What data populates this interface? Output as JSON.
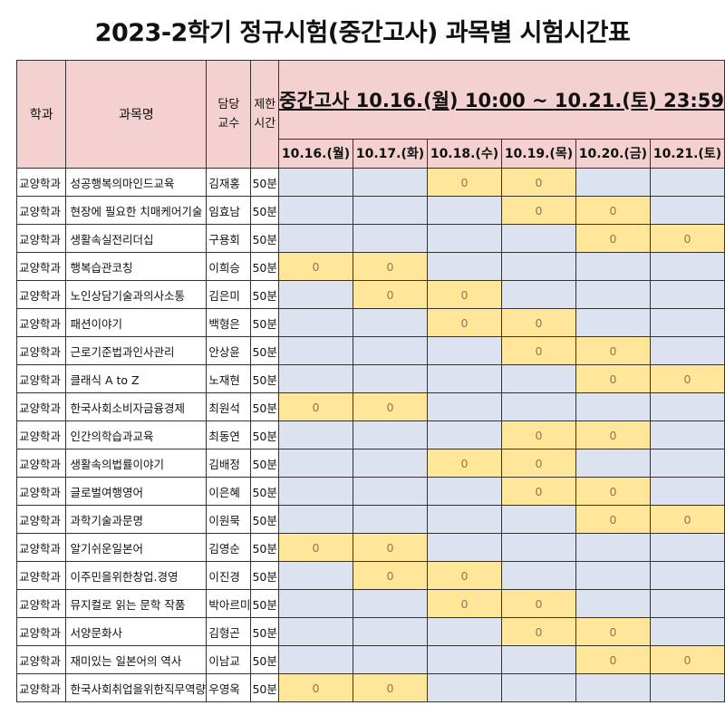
{
  "title": "2023-2학기 정규시험(중간고사) 과목별 시험시간표",
  "header": {
    "dept": "학과",
    "subject": "과목명",
    "prof": "담당\n교수",
    "limit": "제한\n시간",
    "banner": "중간고사  10.16.(월) 10:00 ~ 10.21.(토) 23:59"
  },
  "dates": [
    "10.16.(월)",
    "10.17.(화)",
    "10.18.(수)",
    "10.19.(목)",
    "10.20.(금)",
    "10.21.(토)"
  ],
  "mark": "0",
  "colors": {
    "header_bg": "#f3d1d1",
    "cell_bg": "#dce3ee",
    "highlight_bg": "#ffe699"
  },
  "rows": [
    {
      "dept": "교양학과",
      "subject": "성공행복의마인드교육",
      "prof": "김재홍",
      "limit": "50분",
      "days": [
        0,
        0,
        1,
        1,
        0,
        0
      ]
    },
    {
      "dept": "교양학과",
      "subject": "현장에 필요한 치매케어기술",
      "prof": "임효남",
      "limit": "50분",
      "days": [
        0,
        0,
        0,
        1,
        1,
        0
      ]
    },
    {
      "dept": "교양학과",
      "subject": "생활속실전리더십",
      "prof": "구용회",
      "limit": "50분",
      "days": [
        0,
        0,
        0,
        0,
        1,
        1
      ]
    },
    {
      "dept": "교양학과",
      "subject": "행복습관코칭",
      "prof": "이희승",
      "limit": "50분",
      "days": [
        1,
        1,
        0,
        0,
        0,
        0
      ]
    },
    {
      "dept": "교양학과",
      "subject": "노인상담기술과의사소통",
      "prof": "김은미",
      "limit": "50분",
      "days": [
        0,
        1,
        1,
        0,
        0,
        0
      ]
    },
    {
      "dept": "교양학과",
      "subject": "패션이야기",
      "prof": "백형은",
      "limit": "50분",
      "days": [
        0,
        0,
        1,
        1,
        0,
        0
      ]
    },
    {
      "dept": "교양학과",
      "subject": "근로기준법과인사관리",
      "prof": "안상윤",
      "limit": "50분",
      "days": [
        0,
        0,
        0,
        1,
        1,
        0
      ]
    },
    {
      "dept": "교양학과",
      "subject": "클래식 A to Z",
      "prof": "노재현",
      "limit": "50분",
      "days": [
        0,
        0,
        0,
        0,
        1,
        1
      ]
    },
    {
      "dept": "교양학과",
      "subject": "한국사회소비자금융경제",
      "prof": "최원석",
      "limit": "50분",
      "days": [
        1,
        1,
        0,
        0,
        0,
        0
      ]
    },
    {
      "dept": "교양학과",
      "subject": "인간의학습과교육",
      "prof": "최동연",
      "limit": "50분",
      "days": [
        0,
        0,
        0,
        1,
        1,
        0
      ]
    },
    {
      "dept": "교양학과",
      "subject": "생활속의법률이야기",
      "prof": "김배정",
      "limit": "50분",
      "days": [
        0,
        0,
        1,
        1,
        0,
        0
      ]
    },
    {
      "dept": "교양학과",
      "subject": "글로벌여행영어",
      "prof": "이은혜",
      "limit": "50분",
      "days": [
        0,
        0,
        0,
        1,
        1,
        0
      ]
    },
    {
      "dept": "교양학과",
      "subject": "과학기술과문명",
      "prof": "이원묵",
      "limit": "50분",
      "days": [
        0,
        0,
        0,
        0,
        1,
        1
      ]
    },
    {
      "dept": "교양학과",
      "subject": "알기쉬운일본어",
      "prof": "김영순",
      "limit": "50분",
      "days": [
        1,
        1,
        0,
        0,
        0,
        0
      ]
    },
    {
      "dept": "교양학과",
      "subject": "이주민을위한창업.경영",
      "prof": "이진경",
      "limit": "50분",
      "days": [
        0,
        1,
        1,
        0,
        0,
        0
      ]
    },
    {
      "dept": "교양학과",
      "subject": "뮤지컬로 읽는 문학 작품",
      "prof": "박아르미",
      "limit": "50분",
      "days": [
        0,
        0,
        1,
        1,
        0,
        0
      ]
    },
    {
      "dept": "교양학과",
      "subject": "서양문화사",
      "prof": "김형곤",
      "limit": "50분",
      "days": [
        0,
        0,
        0,
        1,
        1,
        0
      ]
    },
    {
      "dept": "교양학과",
      "subject": "재미있는 일본어의 역사",
      "prof": "이남교",
      "limit": "50분",
      "days": [
        0,
        0,
        0,
        0,
        1,
        1
      ]
    },
    {
      "dept": "교양학과",
      "subject": "한국사회취업을위한직무역량",
      "prof": "우영옥",
      "limit": "50분",
      "days": [
        1,
        1,
        0,
        0,
        0,
        0
      ]
    }
  ]
}
